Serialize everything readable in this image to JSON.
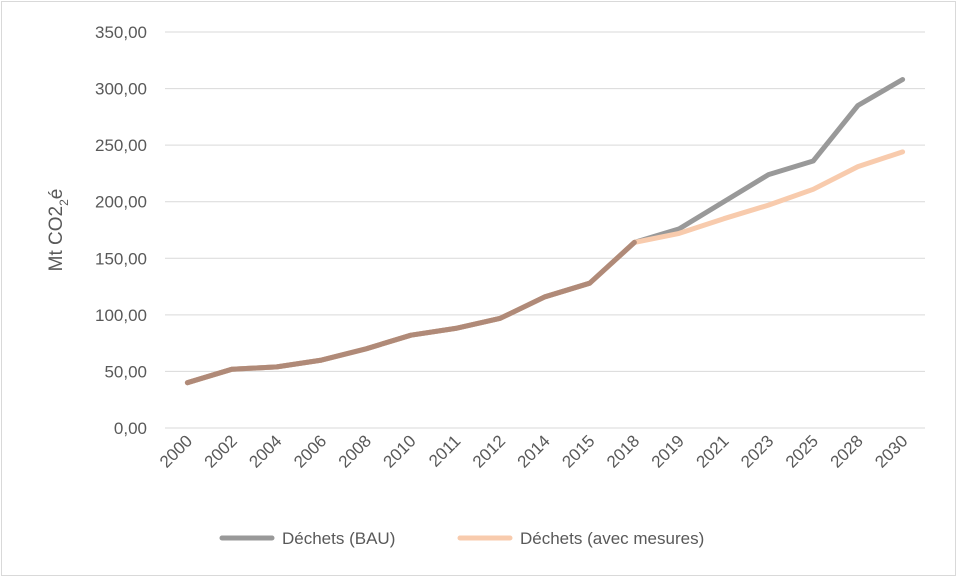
{
  "chart_data": {
    "type": "line",
    "title": "",
    "xlabel": "",
    "ylabel_main": "Mt CO2",
    "ylabel_sub": "2",
    "ylabel_suffix": "é",
    "ylim": [
      0,
      350
    ],
    "yticks": [
      "0,00",
      "50,00",
      "100,00",
      "150,00",
      "200,00",
      "250,00",
      "300,00",
      "350,00"
    ],
    "categories": [
      "2000",
      "2002",
      "2004",
      "2006",
      "2008",
      "2010",
      "2011",
      "2012",
      "2014",
      "2015",
      "2018",
      "2019",
      "2021",
      "2023",
      "2025",
      "2028",
      "2030"
    ],
    "grid": true,
    "legend_position": "bottom",
    "series": [
      {
        "name": "Déchets (BAU)",
        "color": "#999999",
        "values": [
          40,
          52,
          54,
          60,
          70,
          82,
          88,
          97,
          116,
          128,
          164,
          176,
          200,
          224,
          236,
          285,
          308
        ]
      },
      {
        "name": "Déchets (avec mesures)",
        "color": "#f8cbad",
        "values": [
          40,
          52,
          54,
          60,
          70,
          82,
          88,
          97,
          116,
          128,
          164,
          172,
          185,
          197,
          211,
          231,
          244
        ]
      }
    ],
    "overlap_color": "#b08a78"
  }
}
